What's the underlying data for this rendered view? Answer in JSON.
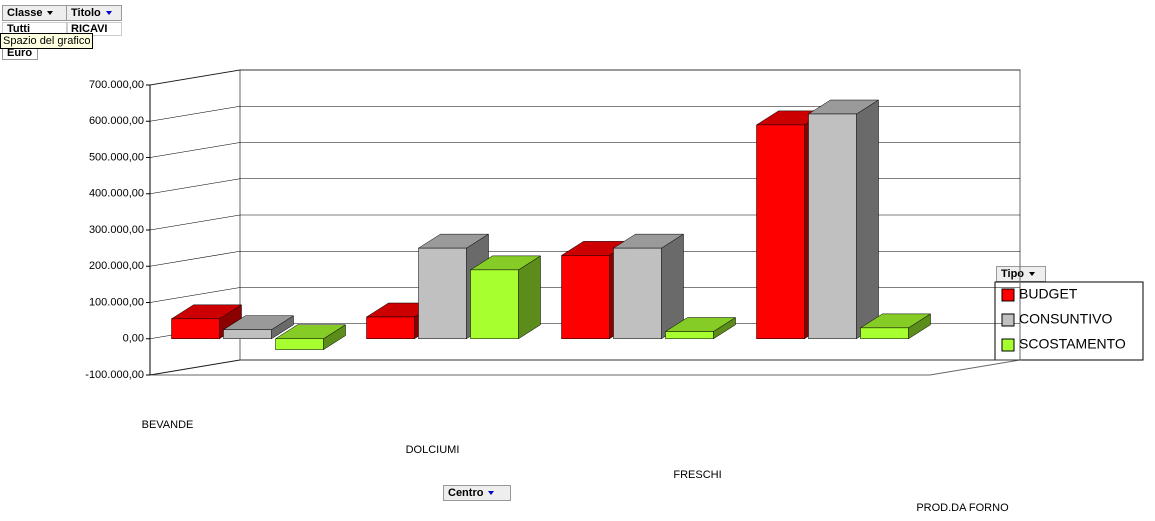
{
  "pivot": {
    "filter1_field": "Classe",
    "filter1_value": "Tutti",
    "filter2_field": "Titolo",
    "filter2_value": "RICAVI",
    "tooltip": "Spazio del grafico",
    "unit": "Euro",
    "category_field": "Centro"
  },
  "chart_data": {
    "type": "bar3d",
    "legend_title": "Tipo",
    "categories": [
      "BEVANDE",
      "DOLCIUMI",
      "FRESCHI",
      "PROD.DA FORNO"
    ],
    "series": [
      {
        "name": "BUDGET",
        "color": "#ff0000",
        "values": [
          55000,
          60000,
          230000,
          590000
        ]
      },
      {
        "name": "CONSUNTIVO",
        "color": "#c0c0c0",
        "values": [
          25000,
          250000,
          250000,
          620000
        ]
      },
      {
        "name": "SCOSTAMENTO",
        "color": "#a8ff30",
        "values": [
          -30000,
          190000,
          20000,
          30000
        ]
      }
    ],
    "ylim": [
      -100000,
      700000
    ],
    "yticks": [
      {
        "value": -100000,
        "label": "-100.000,00"
      },
      {
        "value": 0,
        "label": "0,00"
      },
      {
        "value": 100000,
        "label": "100.000,00"
      },
      {
        "value": 200000,
        "label": "200.000,00"
      },
      {
        "value": 300000,
        "label": "300.000,00"
      },
      {
        "value": 400000,
        "label": "400.000,00"
      },
      {
        "value": 500000,
        "label": "500.000,00"
      },
      {
        "value": 600000,
        "label": "600.000,00"
      },
      {
        "value": 700000,
        "label": "700.000,00"
      }
    ],
    "grid": true
  }
}
